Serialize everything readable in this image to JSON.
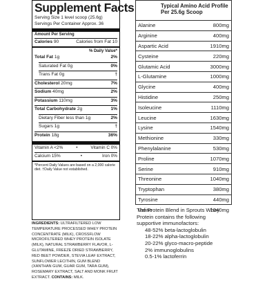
{
  "facts": {
    "title": "Supplement Facts",
    "serving_size": "Serving Size 1 level scoop (25.6g)",
    "servings_per_container": "Servings Per Container Approx. 36",
    "amount_per_serving": "Amount Per Serving",
    "calories_label": "Calories",
    "calories_value": "90",
    "calories_fat": "Calories from Fat 10",
    "dv_header": "% Daily Value*",
    "rows": [
      {
        "label": "Total Fat",
        "amount": "1g",
        "dv": "2%",
        "bold": true,
        "indent": 0
      },
      {
        "label": "Saturated Fat",
        "amount": "0g",
        "dv": "0%",
        "bold": false,
        "indent": 1
      },
      {
        "label": "Trans Fat",
        "amount": "0g",
        "dv": "†",
        "bold": false,
        "indent": 1
      },
      {
        "label": "Cholesterol",
        "amount": "20mg",
        "dv": "7%",
        "bold": true,
        "indent": 0
      },
      {
        "label": "Sodium",
        "amount": "40mg",
        "dv": "2%",
        "bold": true,
        "indent": 0
      },
      {
        "label": "Potassium",
        "amount": "110mg",
        "dv": "3%",
        "bold": true,
        "indent": 0
      },
      {
        "label": "Total Carbohydrate",
        "amount": "2g",
        "dv": "1%",
        "bold": true,
        "indent": 0
      },
      {
        "label": "Dietary Fiber less than",
        "amount": "1g",
        "dv": "2%",
        "bold": false,
        "indent": 1
      },
      {
        "label": "Sugars",
        "amount": "1g",
        "dv": "†",
        "bold": false,
        "indent": 1
      },
      {
        "label": "Protein",
        "amount": "18g",
        "dv": "36%",
        "bold": true,
        "indent": 0
      }
    ],
    "vitamins": [
      {
        "left": "Vitamin A <2%",
        "right": "Vitamin C 0%"
      },
      {
        "left": "Calcium 15%",
        "right": "Iron 0%"
      }
    ],
    "footnote": "*Percent Daily Values are based on a 2,000 calorie diet. †Daily Value not established."
  },
  "ingredients": {
    "label": "INGREDIENTS:",
    "text": "ULTRAFILTERED LOW TEMPERATURE PROCESSED WHEY PROTEIN CONCENTRATE (MILK), CROSSFLOW MICROFILTERED WHEY PROTEIN ISOLATE (MILK), NATURAL STRAWBERRY FLAVOR, L-GLUTAMINE, FREEZE DRIED STRAWBERRY, RED BEET POWDER, STEVIA LEAF EXTRACT, SUNFLOWER LECITHIN, GUM BLEND (XANTHAN GUM, GUAR GUM, TARA GUM), ROSEMARY EXTRACT, SALT AND MONK FRUIT EXTRACT.",
    "contains_label": "CONTAINS:",
    "contains": "MILK."
  },
  "amino": {
    "title_line1": "Typical Amino Acid Profile",
    "title_line2": "Per 25.6g Scoop",
    "rows": [
      {
        "name": "Alanine",
        "value": "800mg"
      },
      {
        "name": "Arginine",
        "value": "400mg"
      },
      {
        "name": "Aspartic Acid",
        "value": "1910mg"
      },
      {
        "name": "Cysteine",
        "value": "220mg"
      },
      {
        "name": "Glutamic Acid",
        "value": "3000mg"
      },
      {
        "name": "L-Glutamine",
        "value": "1000mg"
      },
      {
        "name": "Glycine",
        "value": "400mg"
      },
      {
        "name": "Histidine",
        "value": "250mg"
      },
      {
        "name": "Isoleucine",
        "value": "1110mg"
      },
      {
        "name": "Leucine",
        "value": "1630mg"
      },
      {
        "name": "Lysine",
        "value": "1540mg"
      },
      {
        "name": "Methionine",
        "value": "330mg"
      },
      {
        "name": "Phenylalanine",
        "value": "530mg"
      },
      {
        "name": "Proline",
        "value": "1070mg"
      },
      {
        "name": "Serine",
        "value": "910mg"
      },
      {
        "name": "Threonine",
        "value": "1040mg"
      },
      {
        "name": "Tryptophan",
        "value": "380mg"
      },
      {
        "name": "Tyrosine",
        "value": "440mg"
      },
      {
        "name": "Valine",
        "value": "1040mg"
      }
    ]
  },
  "blend": {
    "intro_1": "The Protein Blend in Sprouts Whey",
    "intro_2": "Protein contains the following",
    "intro_3": "supportive immunofactors:",
    "items": [
      "48-52% beta-lactoglobulin",
      "18-22% alpha-lactoglobulin",
      "20-22% glyco-macro-peptide",
      "2% immunoglobulins",
      "0.5-1% lactoferrin"
    ]
  }
}
